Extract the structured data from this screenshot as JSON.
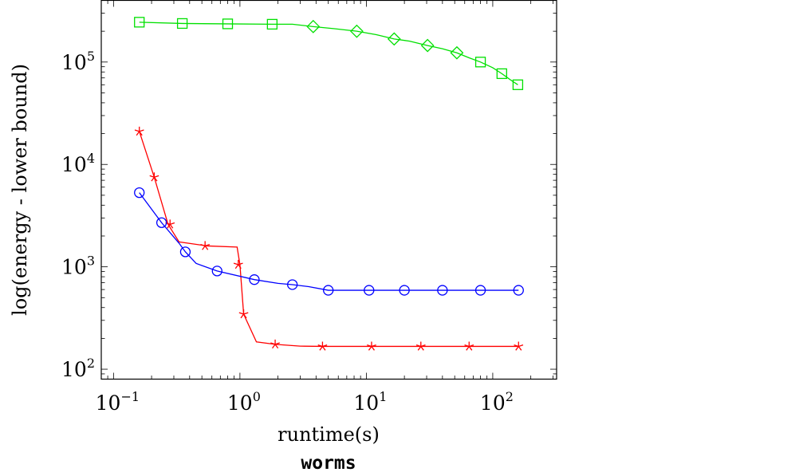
{
  "chart_data": {
    "type": "line",
    "xlabel": "runtime(s)",
    "ylabel": "log(energy - lower bound)",
    "caption": "worms",
    "x_scale": "log",
    "y_scale": "log",
    "xlim": [
      0.08,
      320
    ],
    "ylim": [
      80,
      400000
    ],
    "x_ticks": [
      {
        "value": 0.1,
        "base": "10",
        "exp": "−1"
      },
      {
        "value": 1,
        "base": "10",
        "exp": "0"
      },
      {
        "value": 10,
        "base": "10",
        "exp": "1"
      },
      {
        "value": 100,
        "base": "10",
        "exp": "2"
      }
    ],
    "y_ticks": [
      {
        "value": 100,
        "base": "10",
        "exp": "2"
      },
      {
        "value": 1000,
        "base": "10",
        "exp": "3"
      },
      {
        "value": 10000,
        "base": "10",
        "exp": "4"
      },
      {
        "value": 100000,
        "base": "10",
        "exp": "5"
      }
    ],
    "grid": false,
    "series": [
      {
        "color": "#00e000",
        "line": [
          [
            0.16,
            245000
          ],
          [
            0.35,
            238000
          ],
          [
            0.8,
            236000
          ],
          [
            1.8,
            234000
          ],
          [
            2.6,
            234000
          ],
          [
            3.8,
            222000
          ],
          [
            5.5,
            212000
          ],
          [
            8.4,
            200000
          ],
          [
            12,
            185000
          ],
          [
            16.6,
            168000
          ],
          [
            22,
            160000
          ],
          [
            30.5,
            145000
          ],
          [
            40,
            135000
          ],
          [
            52,
            123000
          ],
          [
            65,
            110000
          ],
          [
            80,
            100000
          ],
          [
            100,
            88000
          ],
          [
            118,
            77000
          ],
          [
            138,
            67000
          ],
          [
            158,
            60000
          ]
        ],
        "markers": [
          {
            "shape": "square",
            "points": [
              [
                0.16,
                245000
              ],
              [
                0.35,
                238000
              ],
              [
                0.8,
                236000
              ],
              [
                1.8,
                234000
              ],
              [
                80,
                100000
              ],
              [
                118,
                77000
              ],
              [
                158,
                60000
              ]
            ]
          },
          {
            "shape": "diamond",
            "points": [
              [
                3.8,
                222000
              ],
              [
                8.4,
                200000
              ],
              [
                16.6,
                168000
              ],
              [
                30.5,
                145000
              ],
              [
                52,
                123000
              ]
            ]
          }
        ]
      },
      {
        "color": "#ff0000",
        "line": [
          [
            0.16,
            21000
          ],
          [
            0.21,
            7500
          ],
          [
            0.27,
            2600
          ],
          [
            0.33,
            1750
          ],
          [
            0.55,
            1600
          ],
          [
            0.95,
            1560
          ],
          [
            1.0,
            1050
          ],
          [
            1.07,
            345
          ],
          [
            1.35,
            185
          ],
          [
            1.9,
            175
          ],
          [
            3.0,
            168
          ],
          [
            4.5,
            167
          ],
          [
            11,
            167
          ],
          [
            27,
            167
          ],
          [
            65,
            167
          ],
          [
            160,
            167
          ]
        ],
        "markers": [
          {
            "shape": "asterisk",
            "points": [
              [
                0.16,
                21000
              ],
              [
                0.21,
                7500
              ],
              [
                0.28,
                2600
              ],
              [
                0.53,
                1600
              ],
              [
                0.97,
                1050
              ],
              [
                1.07,
                345
              ],
              [
                1.9,
                175
              ],
              [
                4.5,
                167
              ],
              [
                11,
                167
              ],
              [
                27,
                167
              ],
              [
                65,
                167
              ],
              [
                160,
                167
              ]
            ]
          }
        ]
      },
      {
        "color": "#0000ff",
        "line": [
          [
            0.16,
            5300
          ],
          [
            0.24,
            2700
          ],
          [
            0.33,
            1700
          ],
          [
            0.37,
            1400
          ],
          [
            0.45,
            1080
          ],
          [
            0.66,
            910
          ],
          [
            1.3,
            750
          ],
          [
            2.0,
            690
          ],
          [
            2.6,
            670
          ],
          [
            3.5,
            640
          ],
          [
            5.0,
            590
          ],
          [
            10.5,
            590
          ],
          [
            20,
            590
          ],
          [
            40,
            590
          ],
          [
            80,
            590
          ],
          [
            160,
            590
          ]
        ],
        "markers": [
          {
            "shape": "circle",
            "points": [
              [
                0.16,
                5300
              ],
              [
                0.24,
                2700
              ],
              [
                0.37,
                1400
              ],
              [
                0.66,
                910
              ],
              [
                1.3,
                750
              ],
              [
                2.6,
                670
              ],
              [
                5.0,
                590
              ],
              [
                10.5,
                590
              ],
              [
                20,
                590
              ],
              [
                40,
                590
              ],
              [
                80,
                590
              ],
              [
                160,
                590
              ]
            ]
          }
        ]
      }
    ]
  }
}
